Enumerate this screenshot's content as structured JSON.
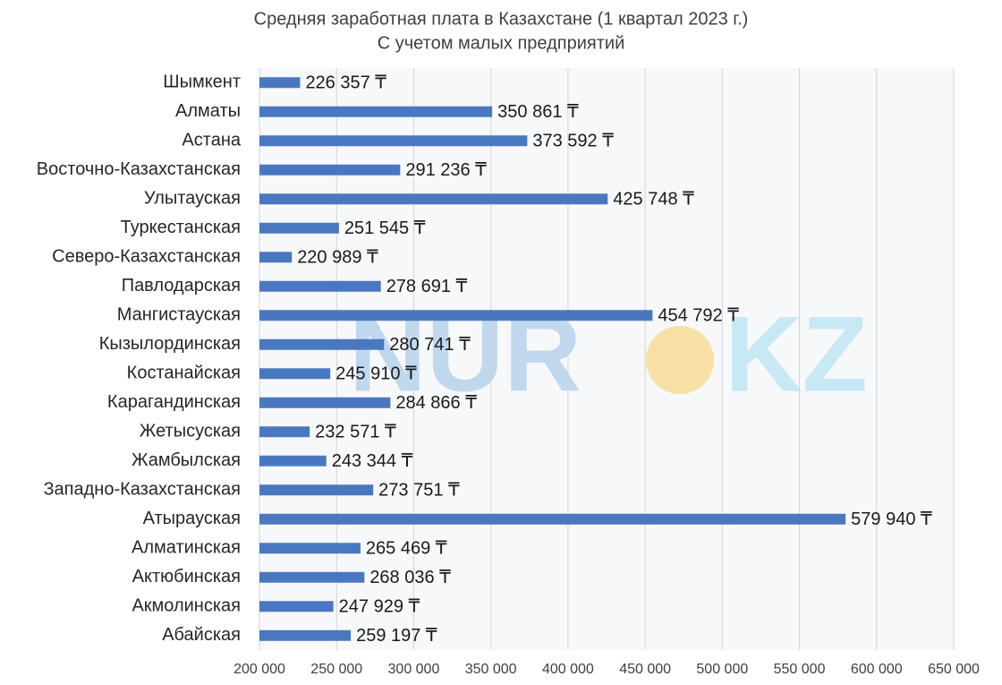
{
  "chart_data": {
    "type": "hbar",
    "title": "Средняя заработная плата в Казахстане (1 квартал 2023 г.)",
    "subtitle": "С учетом малых предприятий",
    "watermark": [
      "NUR",
      "KZ"
    ],
    "categories": [
      "Шымкент",
      "Алматы",
      "Астана",
      "Восточно-Казахстанская",
      "Улытауская",
      "Туркестанская",
      "Северо-Казахстанская",
      "Павлодарская",
      "Мангистауская",
      "Кызылординская",
      "Костанайская",
      "Карагандинская",
      "Жетысуская",
      "Жамбылская",
      "Западно-Казахстанская",
      "Атырауская",
      "Алматинская",
      "Актюбинская",
      "Акмолинская",
      "Абайская"
    ],
    "values": [
      226357,
      350861,
      373592,
      291236,
      425748,
      251545,
      220989,
      278691,
      454792,
      280741,
      245910,
      284866,
      232571,
      243344,
      273751,
      579940,
      265469,
      268036,
      247929,
      259197
    ],
    "value_labels": [
      "226 357 ₸",
      "350 861 ₸",
      "373 592 ₸",
      "291 236 ₸",
      "425 748 ₸",
      "251 545 ₸",
      "220 989 ₸",
      "278 691 ₸",
      "454 792 ₸",
      "280 741 ₸",
      "245 910 ₸",
      "284 866 ₸",
      "232 571 ₸",
      "243 344 ₸",
      "273 751 ₸",
      "579 940 ₸",
      "265 469 ₸",
      "268 036 ₸",
      "247 929 ₸",
      "259 197 ₸"
    ],
    "color": "#4a78c0",
    "xlim": [
      200000,
      650000
    ],
    "xticks": [
      {
        "value": 200000,
        "label": "200 000"
      },
      {
        "value": 250000,
        "label": "250 000"
      },
      {
        "value": 300000,
        "label": "300 000"
      },
      {
        "value": 350000,
        "label": "350 000"
      },
      {
        "value": 400000,
        "label": "400 000"
      },
      {
        "value": 450000,
        "label": "450 000"
      },
      {
        "value": 500000,
        "label": "500 000"
      },
      {
        "value": 550000,
        "label": "550 000"
      },
      {
        "value": 600000,
        "label": "600 000"
      },
      {
        "value": 650000,
        "label": "650 000"
      }
    ],
    "grid": true
  }
}
